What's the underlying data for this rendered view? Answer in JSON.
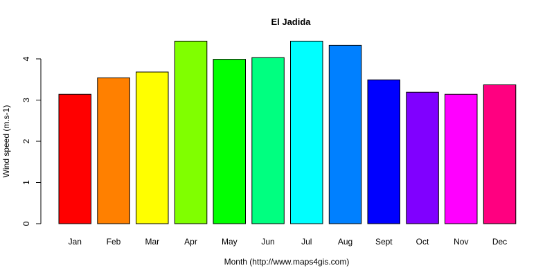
{
  "chart_data": {
    "type": "bar",
    "title": "El Jadida",
    "xlabel": "Month (http://www.maps4gis.com)",
    "ylabel": "Wind speed (m.s-1)",
    "categories": [
      "Jan",
      "Feb",
      "Mar",
      "Apr",
      "May",
      "Jun",
      "Jul",
      "Aug",
      "Sept",
      "Oct",
      "Nov",
      "Dec"
    ],
    "values": [
      3.14,
      3.54,
      3.68,
      4.43,
      3.99,
      4.03,
      4.43,
      4.33,
      3.49,
      3.19,
      3.14,
      3.37
    ],
    "colors": [
      "#ff0000",
      "#ff8000",
      "#ffff00",
      "#80ff00",
      "#00ff00",
      "#00ff80",
      "#00ffff",
      "#0080ff",
      "#0000ff",
      "#8000ff",
      "#ff00ff",
      "#ff0080"
    ],
    "ylim": [
      0,
      4.5
    ],
    "yticks": [
      0,
      1,
      2,
      3,
      4
    ],
    "grid": false,
    "legend": "none"
  }
}
